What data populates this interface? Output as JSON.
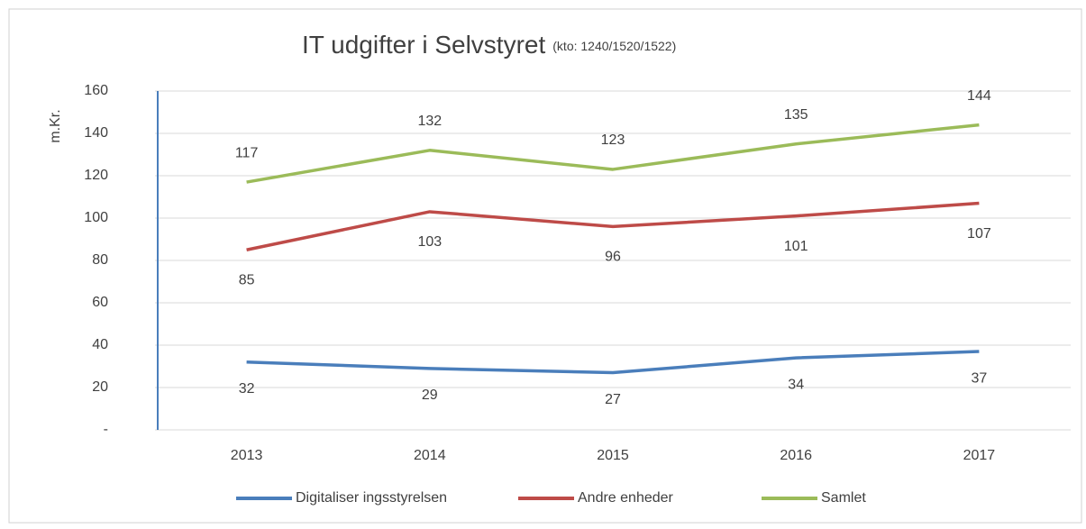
{
  "chart_data": {
    "type": "line",
    "title": "IT udgifter i Selvstyret",
    "subtitle": "(kto: 1240/1520/1522)",
    "y_label": "m.Kr.",
    "categories": [
      "2013",
      "2014",
      "2015",
      "2016",
      "2017"
    ],
    "series": [
      {
        "name": "Digitaliser ingsstyrelsen",
        "color": "#4a7ebb",
        "values": [
          32,
          29,
          27,
          34,
          37
        ]
      },
      {
        "name": "Andre enheder",
        "color": "#be4b48",
        "values": [
          85,
          103,
          96,
          101,
          107
        ]
      },
      {
        "name": "Samlet",
        "color": "#9bbb59",
        "values": [
          117,
          132,
          123,
          135,
          144
        ]
      }
    ],
    "ylim": [
      0,
      160
    ],
    "yticks": [
      {
        "value": 0,
        "label": "-"
      },
      20,
      40,
      60,
      80,
      100,
      120,
      140,
      160
    ],
    "grid": true,
    "legend": "bottom"
  }
}
